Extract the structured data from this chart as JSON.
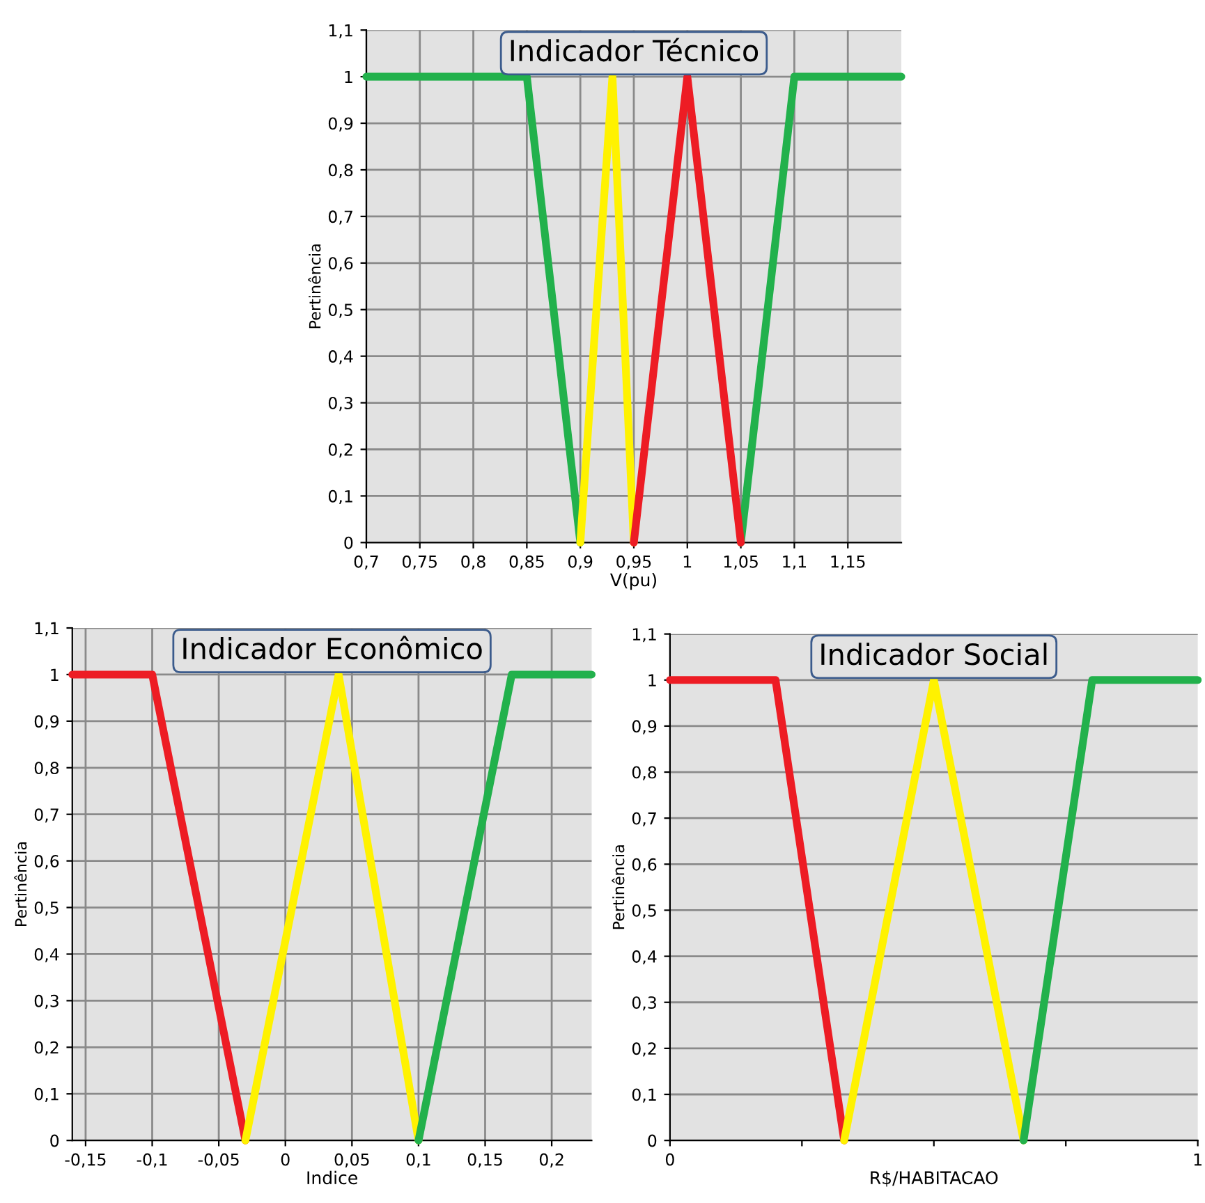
{
  "chart_data": [
    {
      "type": "line",
      "title": "Indicador Técnico",
      "xlabel": "V(pu)",
      "ylabel": "Pertinência",
      "grid": true,
      "marker": "none",
      "line_style": "solid",
      "xlim": [
        0.7,
        1.2
      ],
      "xticks": [
        {
          "value": 0.7,
          "label": "0,7"
        },
        {
          "value": 0.75,
          "label": "0,75"
        },
        {
          "value": 0.8,
          "label": "0,8"
        },
        {
          "value": 0.85,
          "label": "0,85"
        },
        {
          "value": 0.9,
          "label": "0,9"
        },
        {
          "value": 0.95,
          "label": "0,95"
        },
        1,
        {
          "value": 1.05,
          "label": "1,05"
        },
        {
          "value": 1.1,
          "label": "1,1"
        },
        {
          "value": 1.15,
          "label": "1,15"
        }
      ],
      "ylim": [
        0,
        1.1
      ],
      "yticks": [
        0,
        {
          "value": 0.1,
          "label": "0,1"
        },
        {
          "value": 0.2,
          "label": "0,2"
        },
        {
          "value": 0.3,
          "label": "0,3"
        },
        {
          "value": 0.4,
          "label": "0,4"
        },
        {
          "value": 0.5,
          "label": "0,5"
        },
        {
          "value": 0.6,
          "label": "0,6"
        },
        {
          "value": 0.7,
          "label": "0,7"
        },
        {
          "value": 0.8,
          "label": "0,8"
        },
        {
          "value": 0.9,
          "label": "0,9"
        },
        1,
        {
          "value": 1.1,
          "label": "1,1"
        }
      ],
      "series": [
        {
          "color": "#22b14c",
          "x": [
            0.7,
            0.85,
            0.9
          ],
          "values": [
            1,
            1,
            0
          ]
        },
        {
          "color": "#22b14c",
          "x": [
            1.05,
            1.1,
            1.2
          ],
          "values": [
            0,
            1,
            1
          ]
        },
        {
          "color": "#fff200",
          "x": [
            0.9,
            0.93,
            0.95
          ],
          "values": [
            0,
            1,
            0
          ]
        },
        {
          "color": "#ed1c24",
          "x": [
            0.95,
            1.0,
            1.05
          ],
          "values": [
            0,
            1,
            0
          ]
        }
      ]
    },
    {
      "type": "line",
      "title": "Indicador Econômico",
      "xlabel": "Indice",
      "ylabel": "Pertinência",
      "grid": true,
      "marker": "none",
      "line_style": "solid",
      "xlim": [
        -0.16,
        0.23
      ],
      "xticks": [
        {
          "value": -0.15,
          "label": "-0,15"
        },
        {
          "value": -0.1,
          "label": "-0,1"
        },
        {
          "value": -0.05,
          "label": "-0,05"
        },
        0,
        {
          "value": 0.05,
          "label": "0,05"
        },
        {
          "value": 0.1,
          "label": "0,1"
        },
        {
          "value": 0.15,
          "label": "0,15"
        },
        {
          "value": 0.2,
          "label": "0,2"
        }
      ],
      "ylim": [
        0,
        1.1
      ],
      "yticks": [
        0,
        {
          "value": 0.1,
          "label": "0,1"
        },
        {
          "value": 0.2,
          "label": "0,2"
        },
        {
          "value": 0.3,
          "label": "0,3"
        },
        {
          "value": 0.4,
          "label": "0,4"
        },
        {
          "value": 0.5,
          "label": "0,5"
        },
        {
          "value": 0.6,
          "label": "0,6"
        },
        {
          "value": 0.7,
          "label": "0,7"
        },
        {
          "value": 0.8,
          "label": "0,8"
        },
        {
          "value": 0.9,
          "label": "0,9"
        },
        1,
        {
          "value": 1.1,
          "label": "1,1"
        }
      ],
      "series": [
        {
          "color": "#ed1c24",
          "x": [
            -0.16,
            -0.1,
            -0.03
          ],
          "values": [
            1,
            1,
            0
          ]
        },
        {
          "color": "#fff200",
          "x": [
            -0.03,
            0.04,
            0.1
          ],
          "values": [
            0,
            1,
            0
          ]
        },
        {
          "color": "#22b14c",
          "x": [
            0.1,
            0.17,
            0.23
          ],
          "values": [
            0,
            1,
            1
          ]
        }
      ]
    },
    {
      "type": "line",
      "title": "Indicador Social",
      "xlabel": "R$/HABITACAO",
      "ylabel": "Pertinência",
      "grid": "y",
      "marker": "none",
      "line_style": "solid",
      "xlim": [
        0,
        1
      ],
      "xticks": [
        0,
        {
          "value": 0.25,
          "label": null
        },
        {
          "value": 0.5,
          "label": null
        },
        {
          "value": 0.75,
          "label": null
        },
        1
      ],
      "ylim": [
        0,
        1.1
      ],
      "yticks": [
        0,
        {
          "value": 0.1,
          "label": "0,1"
        },
        {
          "value": 0.2,
          "label": "0,2"
        },
        {
          "value": 0.3,
          "label": "0,3"
        },
        {
          "value": 0.4,
          "label": "0,4"
        },
        {
          "value": 0.5,
          "label": "0,5"
        },
        {
          "value": 0.6,
          "label": "0,6"
        },
        {
          "value": 0.7,
          "label": "0,7"
        },
        {
          "value": 0.8,
          "label": "0,8"
        },
        {
          "value": 0.9,
          "label": "0,9"
        },
        1,
        {
          "value": 1.1,
          "label": "1,1"
        }
      ],
      "series": [
        {
          "color": "#ed1c24",
          "x": [
            0,
            0.2,
            0.33
          ],
          "values": [
            1,
            1,
            0
          ]
        },
        {
          "color": "#fff200",
          "x": [
            0.33,
            0.5,
            0.67
          ],
          "values": [
            0,
            1,
            0
          ]
        },
        {
          "color": "#22b14c",
          "x": [
            0.67,
            0.8,
            1
          ],
          "values": [
            0,
            1,
            1
          ]
        }
      ]
    }
  ]
}
